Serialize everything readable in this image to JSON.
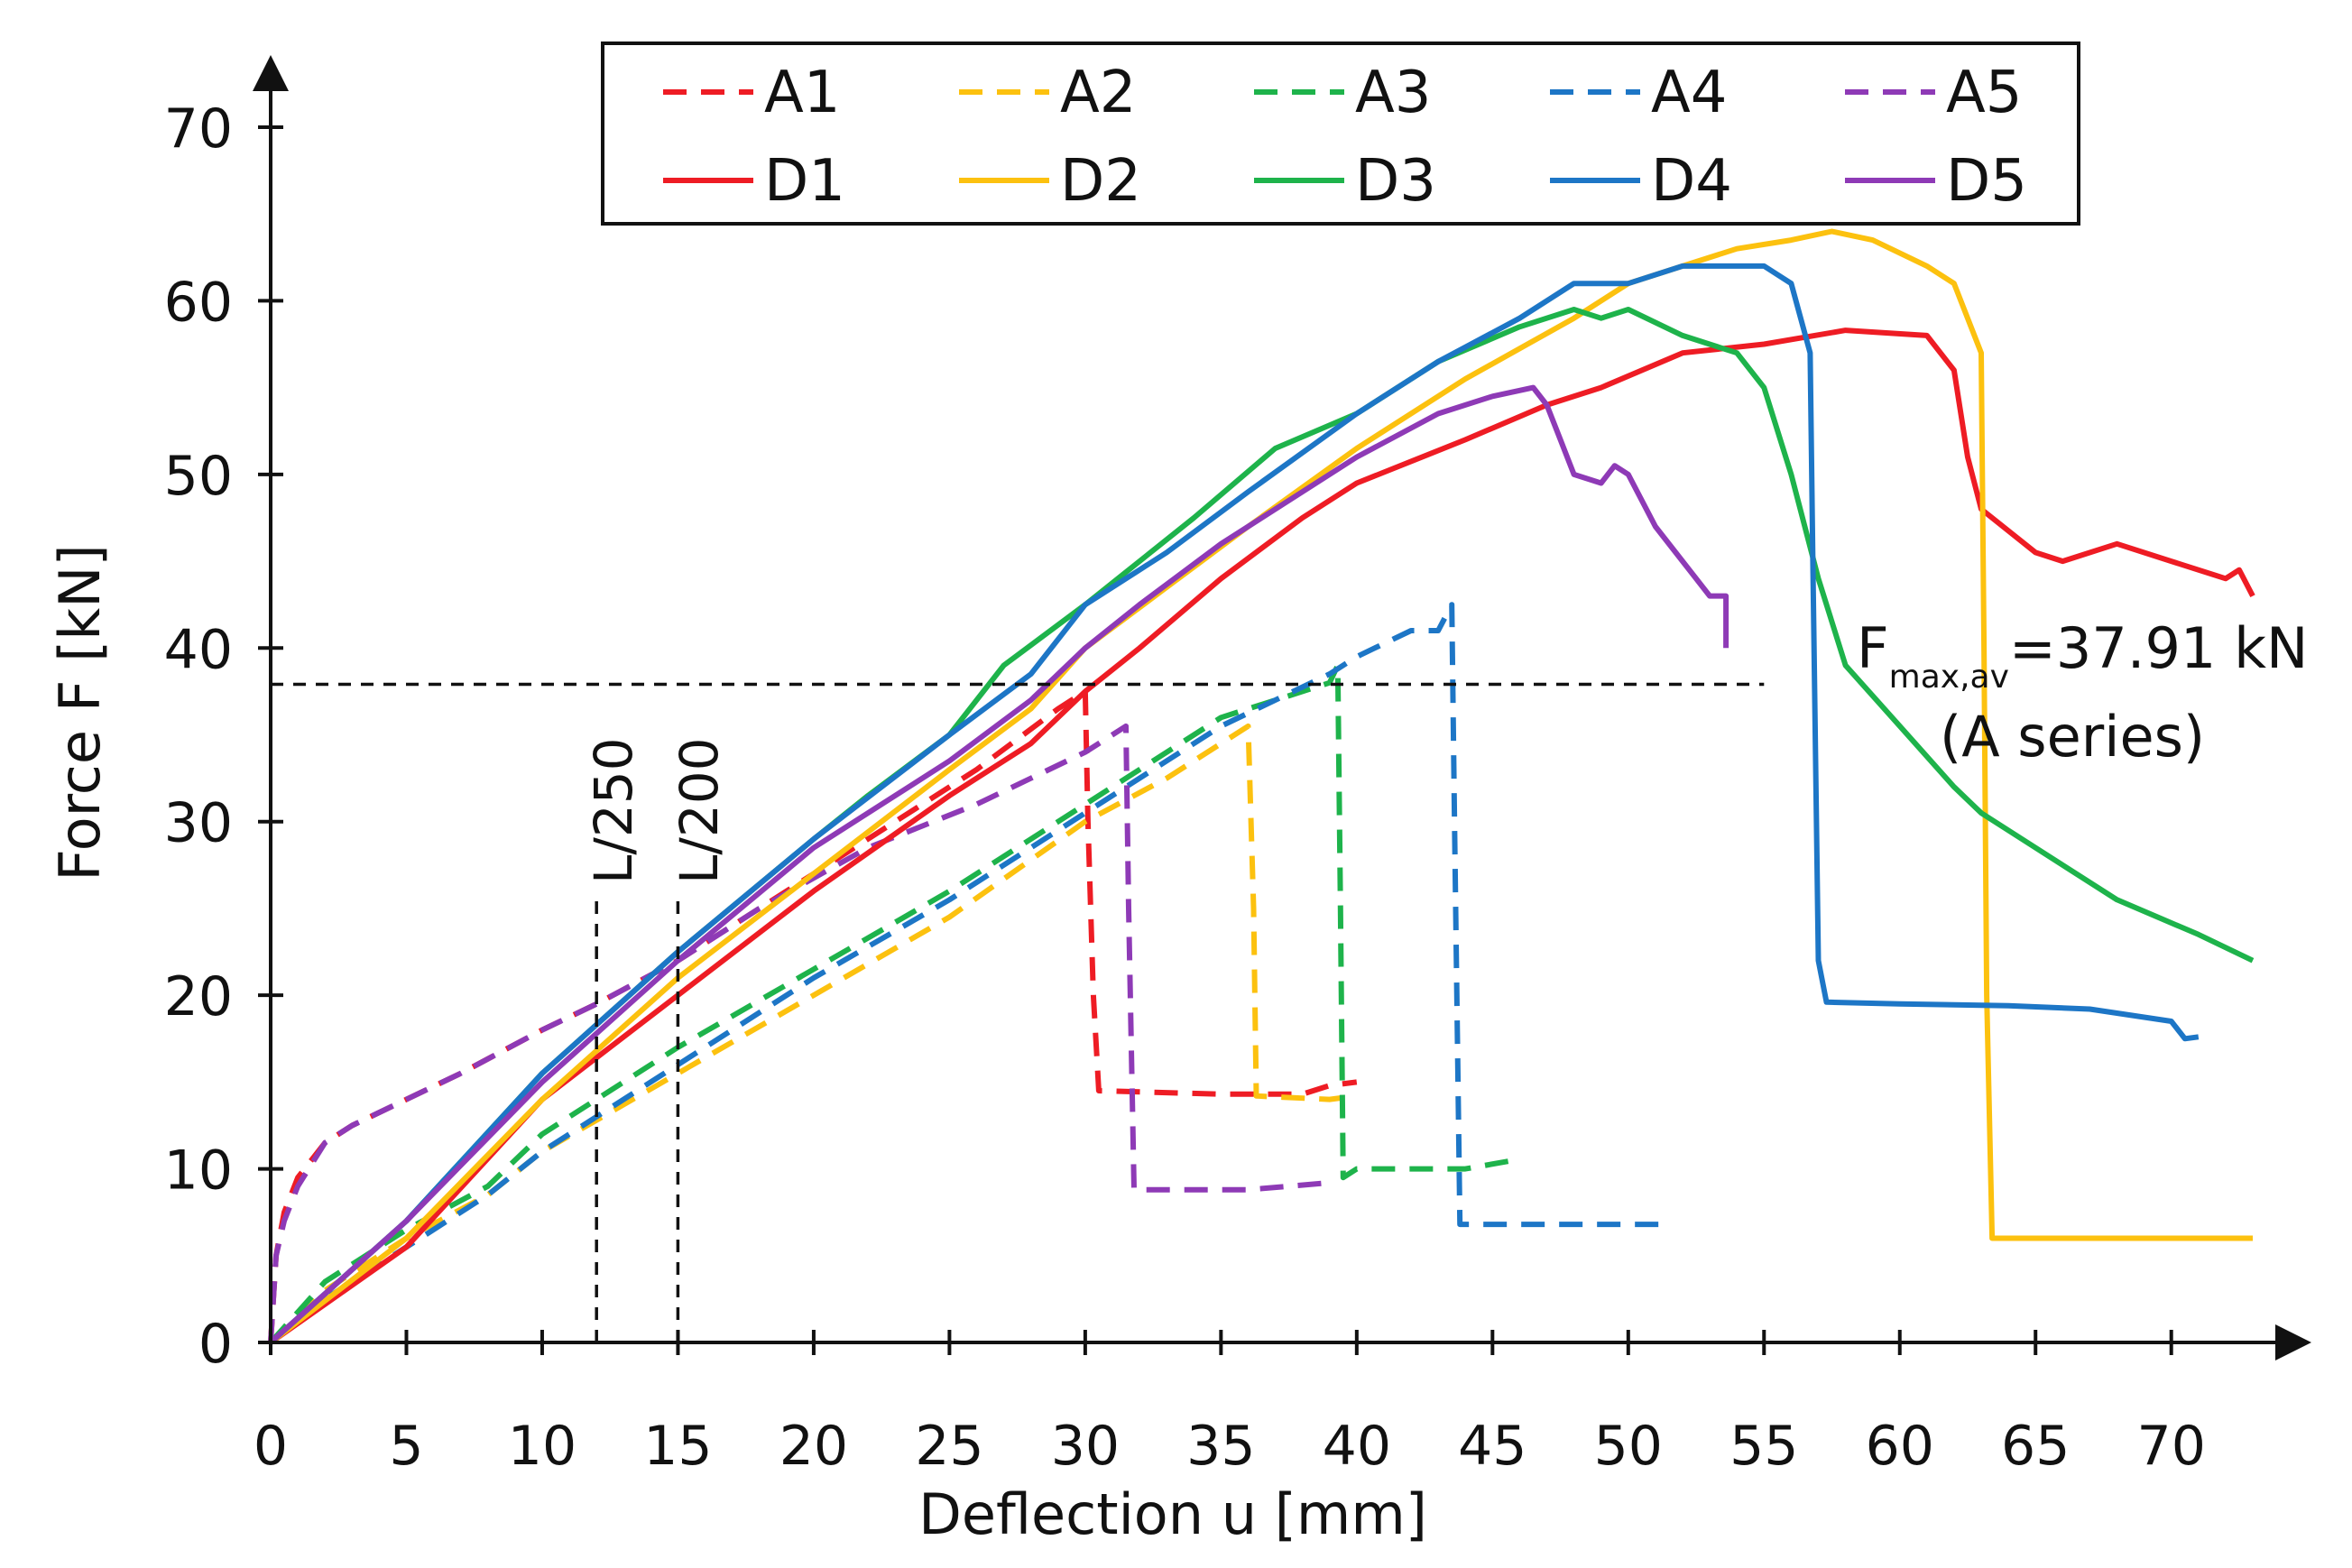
{
  "chart_data": {
    "type": "line",
    "xlabel": "Deflection u [mm]",
    "ylabel": "Force F [kN]",
    "xlim": [
      0,
      73
    ],
    "ylim": [
      0,
      70
    ],
    "x_ticks": [
      0,
      5,
      10,
      15,
      20,
      25,
      30,
      35,
      40,
      45,
      50,
      55,
      60,
      65,
      70
    ],
    "y_ticks": [
      0,
      10,
      20,
      30,
      40,
      50,
      60,
      70
    ],
    "grid": false,
    "legend": {
      "placement": "top-center",
      "columns": 5
    },
    "series": [
      {
        "name": "A1",
        "color": "#ee1c24",
        "dash": "dashed",
        "points": [
          [
            0,
            0
          ],
          [
            0.2,
            5
          ],
          [
            0.5,
            7.5
          ],
          [
            1,
            9.5
          ],
          [
            2,
            11.5
          ],
          [
            3,
            12.5
          ],
          [
            5,
            14
          ],
          [
            7,
            15.5
          ],
          [
            10,
            18
          ],
          [
            12,
            19.5
          ],
          [
            15,
            22
          ],
          [
            18,
            25
          ],
          [
            22,
            29
          ],
          [
            26,
            33
          ],
          [
            29,
            36.5
          ],
          [
            30,
            37.5
          ],
          [
            30.1,
            30
          ],
          [
            30.3,
            20
          ],
          [
            30.5,
            14.5
          ],
          [
            35,
            14.3
          ],
          [
            38,
            14.3
          ],
          [
            39,
            14.8
          ],
          [
            40,
            15
          ]
        ]
      },
      {
        "name": "A2",
        "color": "#fcc10f",
        "dash": "dashed",
        "points": [
          [
            0,
            0
          ],
          [
            2,
            3
          ],
          [
            5,
            6
          ],
          [
            8,
            8.5
          ],
          [
            10,
            11
          ],
          [
            15,
            15.5
          ],
          [
            20,
            20
          ],
          [
            25,
            24.5
          ],
          [
            30,
            30
          ],
          [
            33,
            32.5
          ],
          [
            36,
            35.5
          ],
          [
            36.2,
            25
          ],
          [
            36.3,
            14.2
          ],
          [
            39,
            14
          ],
          [
            40,
            14.2
          ]
        ]
      },
      {
        "name": "A3",
        "color": "#1eb34b",
        "dash": "dashed",
        "points": [
          [
            0,
            0
          ],
          [
            2,
            3.5
          ],
          [
            5,
            6.5
          ],
          [
            8,
            9
          ],
          [
            10,
            12
          ],
          [
            15,
            17
          ],
          [
            20,
            21.5
          ],
          [
            25,
            26
          ],
          [
            30,
            31
          ],
          [
            35,
            36
          ],
          [
            39,
            38
          ],
          [
            39.3,
            39
          ],
          [
            39.4,
            25
          ],
          [
            39.5,
            9.5
          ],
          [
            40,
            10
          ],
          [
            42,
            10
          ],
          [
            44,
            10
          ],
          [
            45.8,
            10.5
          ]
        ]
      },
      {
        "name": "A4",
        "color": "#1d76c6",
        "dash": "dashed",
        "points": [
          [
            0,
            0
          ],
          [
            2,
            2.5
          ],
          [
            5,
            5.5
          ],
          [
            8,
            8.5
          ],
          [
            10,
            11
          ],
          [
            15,
            16
          ],
          [
            20,
            21
          ],
          [
            25,
            25.5
          ],
          [
            30,
            30.5
          ],
          [
            35,
            35.5
          ],
          [
            39,
            38.5
          ],
          [
            40,
            39.5
          ],
          [
            42,
            41
          ],
          [
            43,
            41
          ],
          [
            43.5,
            42.5
          ],
          [
            43.6,
            30
          ],
          [
            43.8,
            6.8
          ],
          [
            45,
            6.8
          ],
          [
            48,
            6.8
          ],
          [
            51.5,
            6.8
          ]
        ]
      },
      {
        "name": "A5",
        "color": "#8e3ab6",
        "dash": "dashed",
        "points": [
          [
            0,
            0
          ],
          [
            0.2,
            5
          ],
          [
            0.5,
            7
          ],
          [
            1,
            9
          ],
          [
            2,
            11.5
          ],
          [
            3,
            12.5
          ],
          [
            5,
            14
          ],
          [
            7,
            15.5
          ],
          [
            10,
            18
          ],
          [
            12,
            19.5
          ],
          [
            15,
            22
          ],
          [
            18,
            25
          ],
          [
            22,
            28.5
          ],
          [
            26,
            31
          ],
          [
            30,
            34
          ],
          [
            31.5,
            35.5
          ],
          [
            31.6,
            25
          ],
          [
            31.8,
            8.8
          ],
          [
            36,
            8.8
          ],
          [
            39,
            9.2
          ]
        ]
      },
      {
        "name": "D1",
        "color": "#ee1c24",
        "dash": "solid",
        "points": [
          [
            0,
            0
          ],
          [
            5,
            5.5
          ],
          [
            10,
            14
          ],
          [
            15,
            20
          ],
          [
            20,
            26
          ],
          [
            25,
            31.5
          ],
          [
            28,
            34.5
          ],
          [
            30,
            37.5
          ],
          [
            32,
            40
          ],
          [
            35,
            44
          ],
          [
            38,
            47.5
          ],
          [
            40,
            49.5
          ],
          [
            44,
            52
          ],
          [
            47,
            54
          ],
          [
            49,
            55
          ],
          [
            52,
            57
          ],
          [
            55,
            57.5
          ],
          [
            58,
            58.3
          ],
          [
            61,
            58
          ],
          [
            62,
            56
          ],
          [
            62.5,
            51
          ],
          [
            63,
            48
          ],
          [
            65,
            45.5
          ],
          [
            66,
            45
          ],
          [
            68,
            46
          ],
          [
            70,
            45
          ],
          [
            72,
            44
          ],
          [
            72.5,
            44.5
          ],
          [
            73,
            43
          ]
        ]
      },
      {
        "name": "D2",
        "color": "#fcc10f",
        "dash": "solid",
        "points": [
          [
            0,
            0
          ],
          [
            5,
            6
          ],
          [
            10,
            14
          ],
          [
            15,
            21
          ],
          [
            20,
            27
          ],
          [
            25,
            33
          ],
          [
            28,
            36.5
          ],
          [
            30,
            40
          ],
          [
            33,
            43.5
          ],
          [
            36,
            47
          ],
          [
            40,
            51.5
          ],
          [
            44,
            55.5
          ],
          [
            48,
            59
          ],
          [
            50,
            61
          ],
          [
            52,
            62
          ],
          [
            54,
            63
          ],
          [
            56,
            63.5
          ],
          [
            57.5,
            64
          ],
          [
            59,
            63.5
          ],
          [
            61,
            62
          ],
          [
            62,
            61
          ],
          [
            63,
            57
          ],
          [
            63.1,
            40
          ],
          [
            63.2,
            20
          ],
          [
            63.4,
            6
          ],
          [
            66,
            6
          ],
          [
            70,
            6
          ],
          [
            73,
            6
          ]
        ]
      },
      {
        "name": "D3",
        "color": "#1eb34b",
        "dash": "solid",
        "points": [
          [
            0,
            0
          ],
          [
            5,
            7
          ],
          [
            10,
            15.5
          ],
          [
            15,
            22.5
          ],
          [
            20,
            29
          ],
          [
            22,
            31.5
          ],
          [
            25,
            35
          ],
          [
            27,
            39
          ],
          [
            30,
            42.5
          ],
          [
            34,
            47.5
          ],
          [
            37,
            51.5
          ],
          [
            40,
            53.5
          ],
          [
            43,
            56.5
          ],
          [
            46,
            58.5
          ],
          [
            48,
            59.5
          ],
          [
            49,
            59
          ],
          [
            50,
            59.5
          ],
          [
            52,
            58
          ],
          [
            54,
            57
          ],
          [
            55,
            55
          ],
          [
            56,
            50
          ],
          [
            57,
            44
          ],
          [
            58,
            39
          ],
          [
            60,
            35.5
          ],
          [
            62,
            32
          ],
          [
            63,
            30.5
          ],
          [
            65,
            28.5
          ],
          [
            68,
            25.5
          ],
          [
            71,
            23.5
          ],
          [
            73,
            22
          ]
        ]
      },
      {
        "name": "D4",
        "color": "#1d76c6",
        "dash": "solid",
        "points": [
          [
            0,
            0
          ],
          [
            5,
            7
          ],
          [
            10,
            15.5
          ],
          [
            15,
            22.5
          ],
          [
            20,
            29
          ],
          [
            25,
            35
          ],
          [
            28,
            38.5
          ],
          [
            30,
            42.5
          ],
          [
            33,
            45.5
          ],
          [
            36,
            49
          ],
          [
            40,
            53.5
          ],
          [
            43,
            56.5
          ],
          [
            46,
            59
          ],
          [
            48,
            61
          ],
          [
            50,
            61
          ],
          [
            52,
            62
          ],
          [
            54,
            62
          ],
          [
            55,
            62
          ],
          [
            56,
            61
          ],
          [
            56.7,
            57
          ],
          [
            56.8,
            45
          ],
          [
            57,
            22
          ],
          [
            57.3,
            19.6
          ],
          [
            60,
            19.5
          ],
          [
            64,
            19.4
          ],
          [
            67,
            19.2
          ],
          [
            70,
            18.5
          ],
          [
            70.5,
            17.5
          ],
          [
            71,
            17.6
          ]
        ]
      },
      {
        "name": "D5",
        "color": "#8e3ab6",
        "dash": "solid",
        "points": [
          [
            0,
            0
          ],
          [
            5,
            7
          ],
          [
            10,
            15
          ],
          [
            15,
            22
          ],
          [
            20,
            28.5
          ],
          [
            25,
            33.5
          ],
          [
            28,
            37
          ],
          [
            30,
            40
          ],
          [
            32,
            42.5
          ],
          [
            35,
            46
          ],
          [
            38,
            49
          ],
          [
            40,
            51
          ],
          [
            43,
            53.5
          ],
          [
            45,
            54.5
          ],
          [
            46.5,
            55
          ],
          [
            47,
            54
          ],
          [
            47.5,
            52
          ],
          [
            48,
            50
          ],
          [
            49,
            49.5
          ],
          [
            49.5,
            50.5
          ],
          [
            50,
            50
          ],
          [
            51,
            47
          ],
          [
            52,
            45
          ],
          [
            53,
            43
          ],
          [
            53.6,
            43
          ],
          [
            53.6,
            40
          ]
        ]
      },
      {
        "name": "",
        "color": "#111111",
        "dash": "dashed",
        "points": [
          [
            0,
            37.91
          ],
          [
            55,
            37.91
          ]
        ]
      },
      {
        "name": "",
        "color": "#111111",
        "dash": "dashed",
        "points": [
          [
            12,
            0
          ],
          [
            12,
            25.5
          ]
        ]
      },
      {
        "name": "",
        "color": "#111111",
        "dash": "dashed",
        "points": [
          [
            15,
            0
          ],
          [
            15,
            25.5
          ]
        ]
      }
    ],
    "annotations": [
      {
        "text": "L/250",
        "x": 12
      },
      {
        "text": "L/200",
        "x": 15
      },
      {
        "text_main": "F",
        "text_sub": "max,av",
        "text_rest": "=37.91 kN",
        "line2": "(A series)",
        "value": 37.91
      }
    ]
  }
}
